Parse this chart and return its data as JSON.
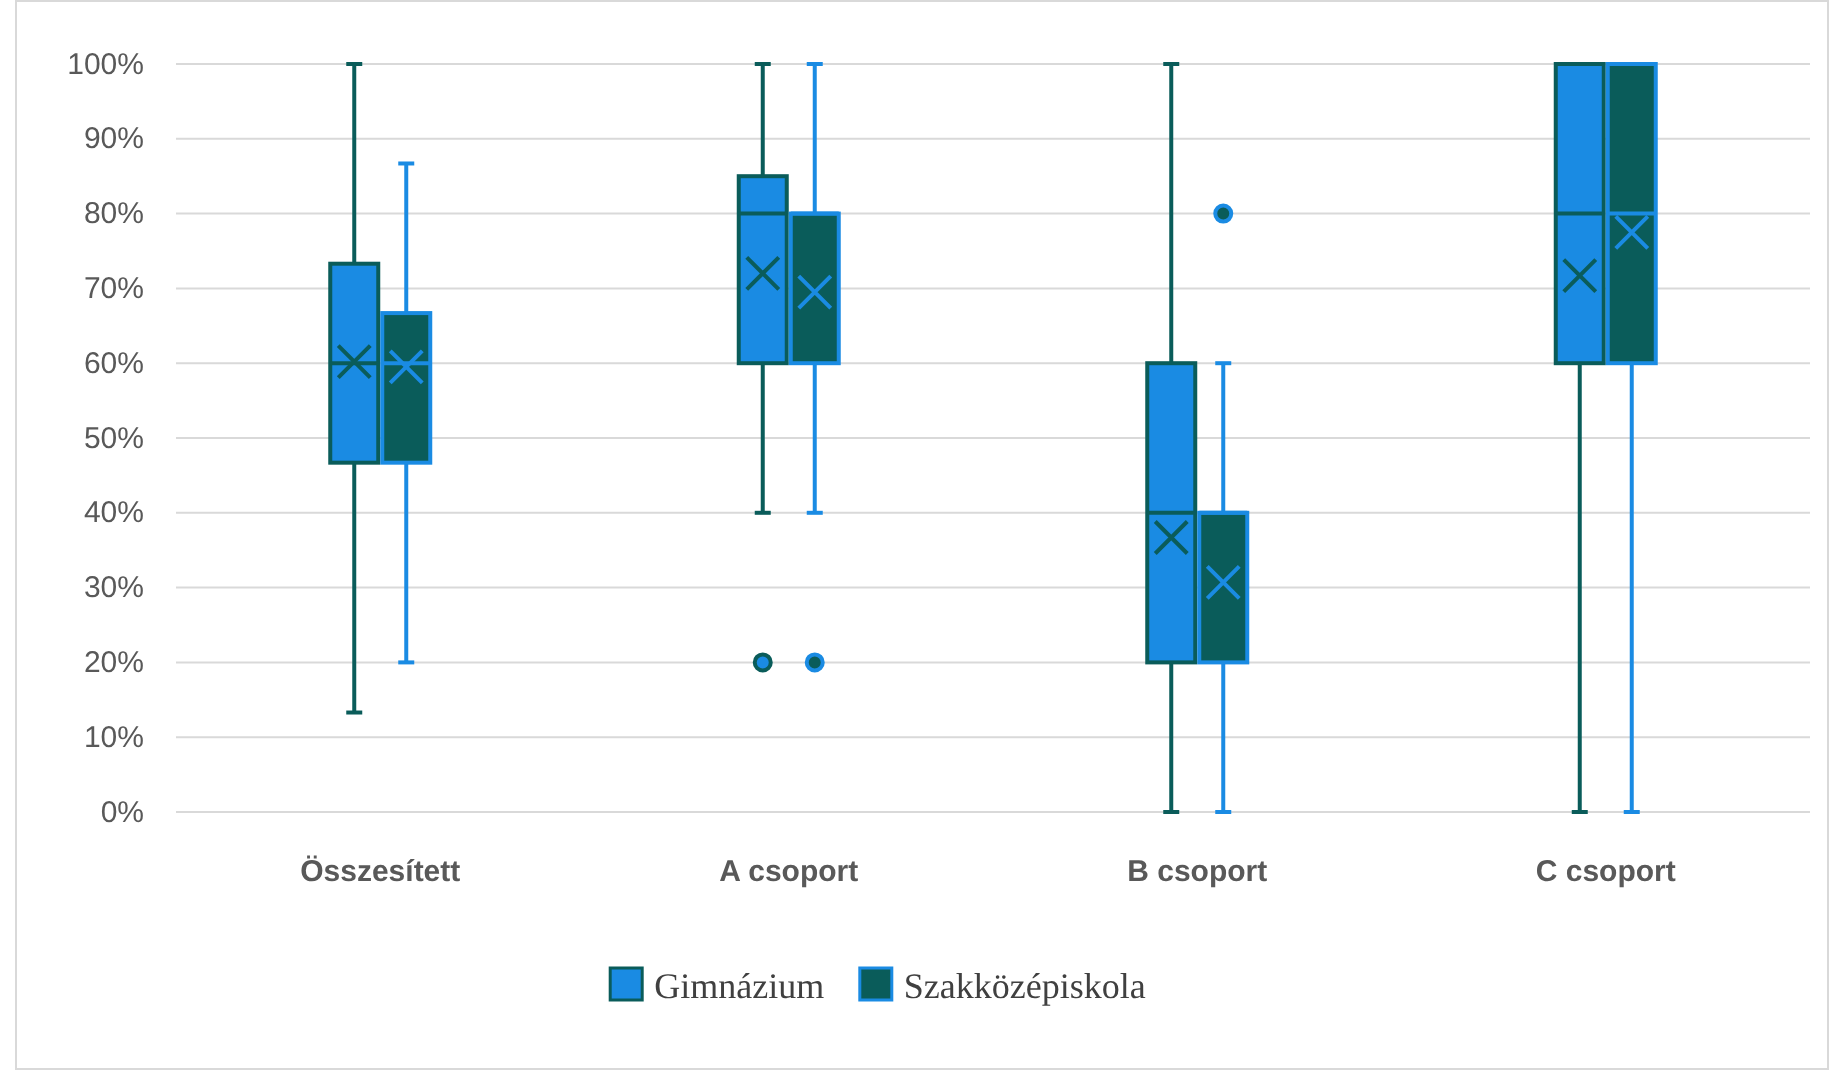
{
  "chart_data": {
    "type": "box",
    "categories": [
      "Összesített",
      "A csoport",
      "B csoport",
      "C csoport"
    ],
    "series": [
      {
        "name": "Gimnázium",
        "color": "#1a8be3",
        "boxes": [
          {
            "low": 13.3,
            "q1": 46.7,
            "median": 60,
            "q3": 73.3,
            "high": 100,
            "mean": 60.2
          },
          {
            "low": 40,
            "q1": 60,
            "median": 80,
            "q3": 85,
            "high": 100,
            "mean": 72,
            "outliers": [
              20
            ]
          },
          {
            "low": 0,
            "q1": 20,
            "median": 40,
            "q3": 60,
            "high": 100,
            "mean": 36.7
          },
          {
            "low": 0,
            "q1": 60,
            "median": 80,
            "q3": 100,
            "high": 100,
            "mean": 71.7
          }
        ]
      },
      {
        "name": "Szakközépiskola",
        "color": "#0a5c5a",
        "boxes": [
          {
            "low": 20,
            "q1": 46.7,
            "median": 60,
            "q3": 66.7,
            "high": 86.7,
            "mean": 59.5
          },
          {
            "low": 40,
            "q1": 60,
            "median": 80,
            "q3": 80,
            "high": 100,
            "mean": 69.5,
            "outliers": [
              20
            ]
          },
          {
            "low": 0,
            "q1": 20,
            "median": 40,
            "q3": 40,
            "high": 60,
            "mean": 30.7,
            "outliers": [
              80
            ]
          },
          {
            "low": 0,
            "q1": 60,
            "median": 80,
            "q3": 100,
            "high": 100,
            "mean": 77.5
          }
        ]
      }
    ],
    "ylim": [
      0,
      100
    ],
    "yticks": [
      {
        "value": 0,
        "label": "0%"
      },
      {
        "value": 10,
        "label": "10%"
      },
      {
        "value": 20,
        "label": "20%"
      },
      {
        "value": 30,
        "label": "30%"
      },
      {
        "value": 40,
        "label": "40%"
      },
      {
        "value": 50,
        "label": "50%"
      },
      {
        "value": 60,
        "label": "60%"
      },
      {
        "value": 70,
        "label": "70%"
      },
      {
        "value": 80,
        "label": "80%"
      },
      {
        "value": 90,
        "label": "90%"
      },
      {
        "value": 100,
        "label": "100%"
      }
    ],
    "grid": "y",
    "legend": "bottom"
  }
}
